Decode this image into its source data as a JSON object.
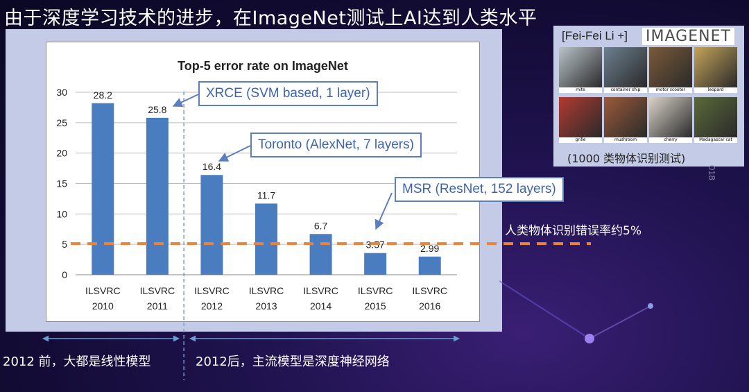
{
  "slide": {
    "title": "由于深度学习技术的进步，在ImageNet测试上AI达到人类水平",
    "slide_number": "018"
  },
  "callouts": {
    "xrce": "XRCE (SVM based, 1 layer)",
    "toronto": "Toronto (AlexNet, 7 layers)",
    "msr": "MSR (ResNet, 152 layers)"
  },
  "human_label": "人类物体识别错误率约5%",
  "bottom": {
    "left": "2012 前，大都是线性模型",
    "right": "2012后，主流模型是深度神经网络"
  },
  "imagenet": {
    "header": "[Fei-Fei Li +]",
    "logo": "IMAGENET",
    "caption": "(1000 类物体识别测试)",
    "images": [
      {
        "label": "mite",
        "color": "#b9c3c9"
      },
      {
        "label": "container ship",
        "color": "#6d7f8e"
      },
      {
        "label": "motor scooter",
        "color": "#7a5a3a"
      },
      {
        "label": "leopard",
        "color": "#c3a35a"
      },
      {
        "label": "grille",
        "color": "#b23a32"
      },
      {
        "label": "mushroom",
        "color": "#9b5a3a"
      },
      {
        "label": "cherry",
        "color": "#d9d2c8"
      },
      {
        "label": "Madagascar cat",
        "color": "#5a6a3a"
      }
    ]
  },
  "chart_data": {
    "type": "bar",
    "title": "Top-5 error rate on ImageNet",
    "categories": [
      [
        "ILSVRC",
        "2010"
      ],
      [
        "ILSVRC",
        "2011"
      ],
      [
        "ILSVRC",
        "2012"
      ],
      [
        "ILSVRC",
        "2013"
      ],
      [
        "ILSVRC",
        "2014"
      ],
      [
        "ILSVRC",
        "2015"
      ],
      [
        "ILSVRC",
        "2016"
      ]
    ],
    "values": [
      28.2,
      25.8,
      16.4,
      11.7,
      6.7,
      3.57,
      2.99
    ],
    "data_labels": [
      "28.2",
      "25.8",
      "16.4",
      "11.7",
      "6.7",
      "3.57",
      "2.99"
    ],
    "yticks": [
      "0",
      "5",
      "10",
      "15",
      "20",
      "25",
      "30"
    ],
    "ylim": [
      0,
      30
    ],
    "grid": true,
    "bar_color": "#4a7cc0",
    "reference_line": {
      "value": 5,
      "color": "#e8843e"
    }
  }
}
